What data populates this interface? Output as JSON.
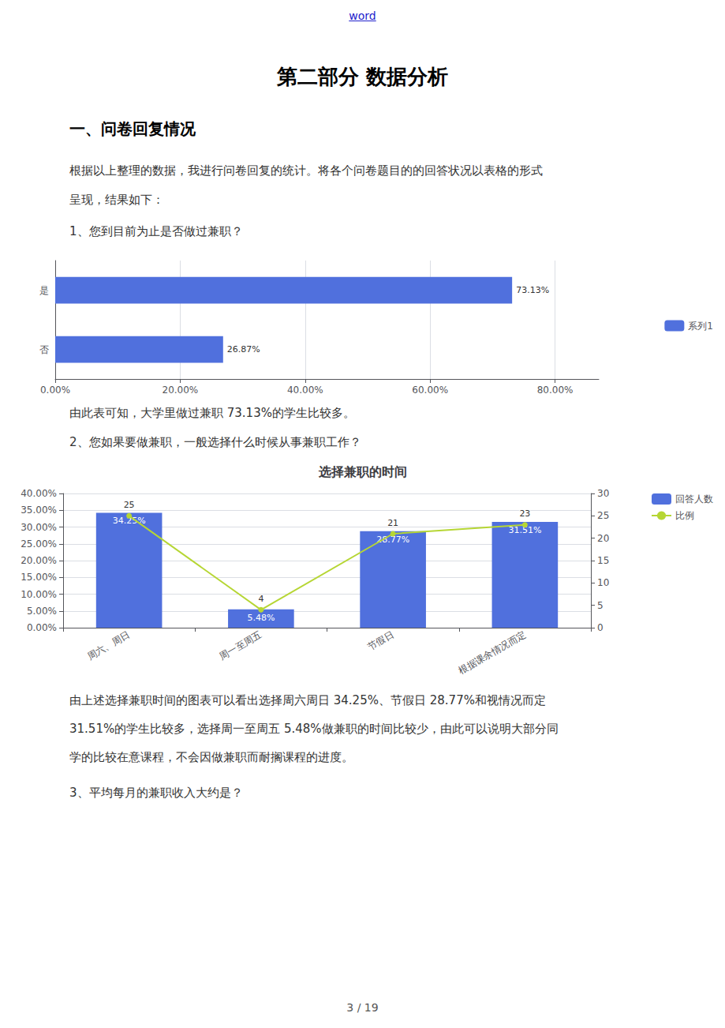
{
  "chart_data": [
    {
      "type": "bar",
      "orientation": "horizontal",
      "annotations": [
        "word",
        "第二部分    数据分析",
        "一、问卷回复情况",
        "根据以上整理的数据，我进行问卷回复的统计。将各个问卷题目的的回答状况以表格的形式",
        "呈现，结果如下：",
        "1、您到目前为止是否做过兼职？"
      ],
      "categories": [
        "否",
        "是"
      ],
      "series": [
        {
          "name": "系列1",
          "values": [
            26.87,
            73.13
          ],
          "value_labels": [
            "26.87%",
            "73.13%"
          ]
        }
      ],
      "xlim": [
        0,
        87
      ],
      "xticks": [
        {
          "value": 0,
          "label": "0.00%"
        },
        {
          "value": 20,
          "label": "20.00%"
        },
        {
          "value": 40,
          "label": "40.00%"
        },
        {
          "value": 60,
          "label": "60.00%"
        },
        {
          "value": 80,
          "label": "80.00%"
        }
      ],
      "grid": true,
      "legend": "right",
      "data_labels": true
    },
    {
      "type": "bar",
      "title": "选择兼职的时间",
      "annotations": [
        "由此表可知，大学里做过兼职 73.13%的学生比较多。",
        "2、您如果要做兼职，一般选择什么时候从事兼职工作？",
        "由上述选择兼职时间的图表可以看出选择周六周日 34.25%、节假日 28.77%和视情况而定",
        "31.51%的学生比较多，选择周一至周五 5.48%做兼职的时间比较少，由此可以说明大部分同",
        "学的比较在意课程，不会因做兼职而耐搁课程的进度。",
        "3、平均每月的兼职收入大约是？",
        "3 / 19"
      ],
      "categories": [
        "周六、周日",
        "周一至周五",
        "节假日",
        "根据课余情况而定"
      ],
      "series": [
        {
          "name": "回答人数",
          "type": "bar",
          "values": [
            34.25,
            5.48,
            28.77,
            31.51
          ],
          "value_labels": [
            "34.25%",
            "5.48%",
            "28.77%",
            "31.51%"
          ]
        },
        {
          "name": "比例",
          "type": "line",
          "axis": "y2",
          "marker": "circle",
          "values": [
            25,
            4,
            21,
            23
          ]
        }
      ],
      "ylim": [
        0,
        40
      ],
      "yticks": [
        {
          "value": 0,
          "label": "0.00%"
        },
        {
          "value": 5,
          "label": "5.00%"
        },
        {
          "value": 10,
          "label": "10.00%"
        },
        {
          "value": 15,
          "label": "15.00%"
        },
        {
          "value": 20,
          "label": "20.00%"
        },
        {
          "value": 25,
          "label": "25.00%"
        },
        {
          "value": 30,
          "label": "30.00%"
        },
        {
          "value": 35,
          "label": "35.00%"
        },
        {
          "value": 40,
          "label": "40.00%"
        }
      ],
      "y2lim": [
        0,
        30
      ],
      "y2ticks": [
        0,
        5,
        10,
        15,
        20,
        25,
        30
      ],
      "grid": true,
      "legend": "upper right",
      "data_labels": true
    }
  ]
}
